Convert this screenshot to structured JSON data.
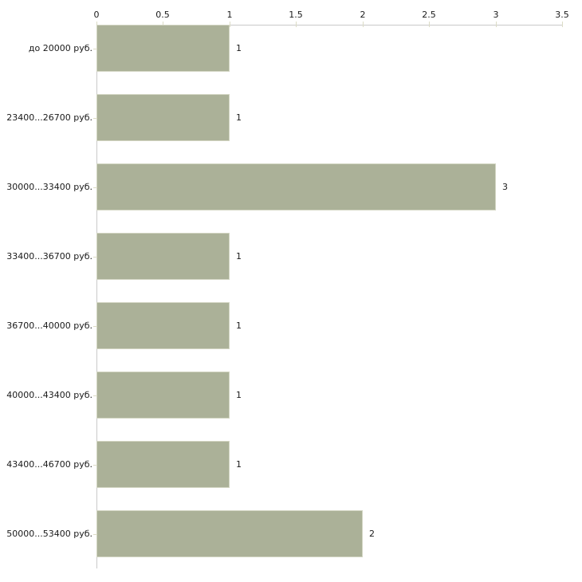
{
  "chart_data": {
    "type": "bar",
    "orientation": "horizontal",
    "title": "",
    "xlabel": "",
    "ylabel": "",
    "categories": [
      "до 20000 руб.",
      "23400...26700 руб.",
      "30000...33400 руб.",
      "33400...36700 руб.",
      "36700...40000 руб.",
      "40000...43400 руб.",
      "43400...46700 руб.",
      "50000...53400 руб."
    ],
    "values": [
      1,
      1,
      3,
      1,
      1,
      1,
      1,
      2
    ],
    "value_labels": [
      "1",
      "1",
      "3",
      "1",
      "1",
      "1",
      "1",
      "2"
    ],
    "xlim": [
      0,
      3.5
    ],
    "x_ticks": [
      0,
      0.5,
      1,
      1.5,
      2,
      2.5,
      3,
      3.5
    ],
    "x_tick_labels": [
      "0",
      "0.5",
      "1",
      "1.5",
      "2",
      "2.5",
      "3",
      "3.5"
    ],
    "axis_position": "top",
    "grid": false,
    "legend": null,
    "colors": {
      "bar_fill": "#abb198",
      "bar_border": "#d2d5c2",
      "axis_line": "#c9c9c9",
      "tick_mark": "#dcdcc6",
      "text": "#1a1a1a",
      "background": "#ffffff"
    }
  }
}
